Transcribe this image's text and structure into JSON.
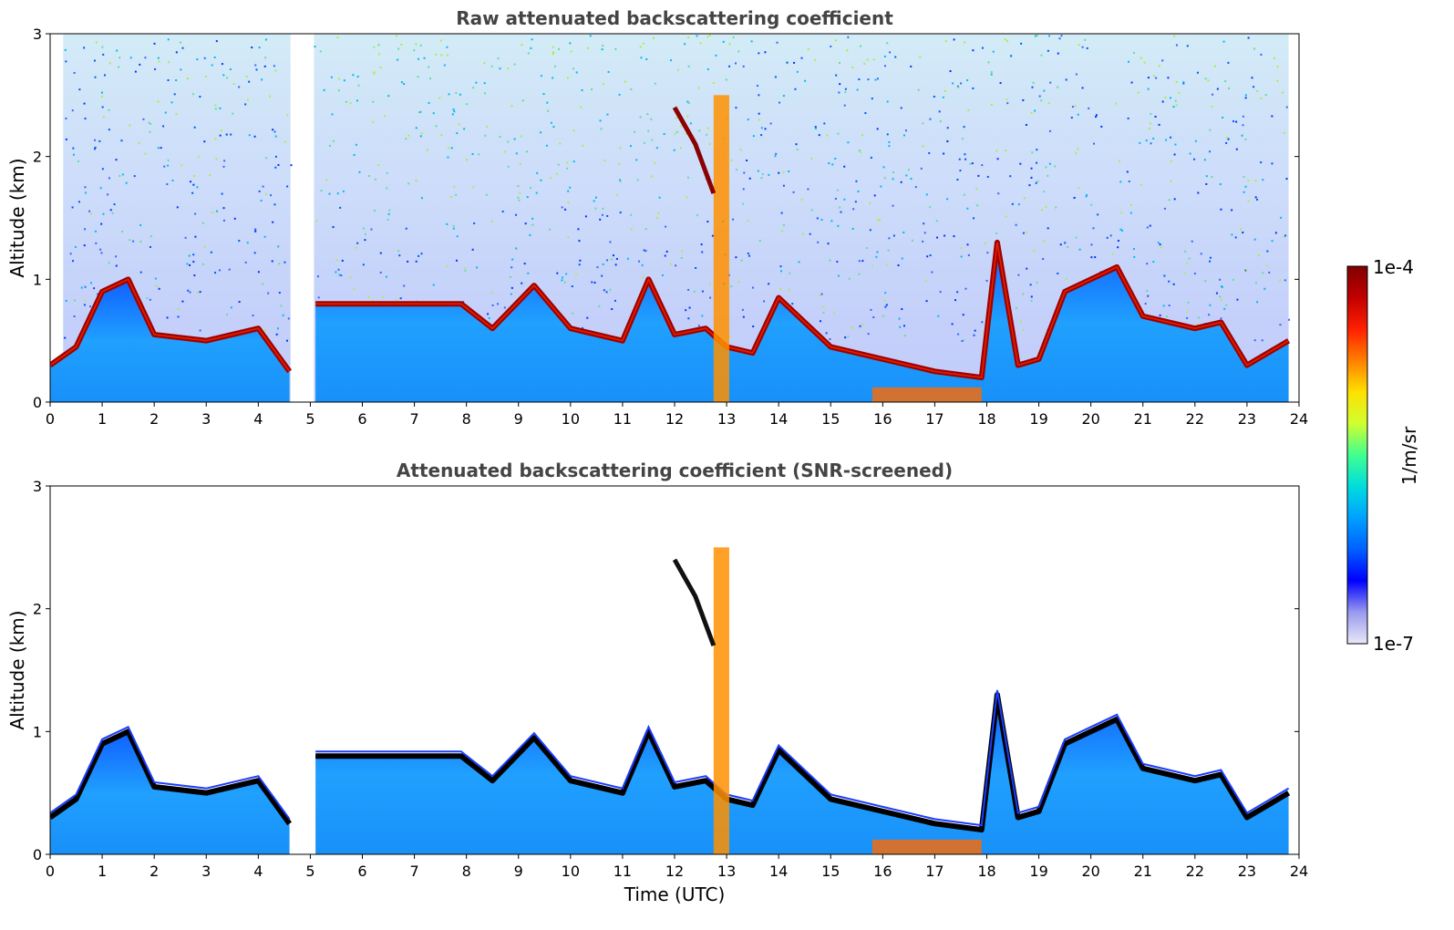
{
  "chart_data": [
    {
      "type": "heatmap",
      "title": "Raw attenuated backscattering coefficient",
      "xlabel": "",
      "ylabel": "Altitude (km)",
      "xlim": [
        0,
        24
      ],
      "ylim": [
        0,
        3
      ],
      "xticks": [
        "0",
        "1",
        "2",
        "3",
        "4",
        "5",
        "6",
        "7",
        "8",
        "9",
        "10",
        "11",
        "12",
        "13",
        "14",
        "15",
        "16",
        "17",
        "18",
        "19",
        "20",
        "21",
        "22",
        "23",
        "24"
      ],
      "yticks": [
        "0",
        "1",
        "2",
        "3"
      ],
      "screened": false,
      "data_gap": [
        4.62,
        5.07
      ],
      "data_end": 23.8,
      "boundary_layer_top_km": {
        "x": [
          0,
          0.5,
          1.0,
          1.5,
          2.0,
          3.0,
          4.0,
          4.6,
          5.1,
          6.0,
          7.0,
          7.9,
          8.5,
          9.3,
          10.0,
          11.0,
          11.5,
          12.0,
          12.6,
          13.0,
          13.5,
          14.0,
          15.0,
          16.0,
          17.0,
          17.9,
          18.2,
          18.6,
          19.0,
          19.5,
          20.0,
          20.5,
          21.0,
          22.0,
          22.5,
          23.0,
          23.8
        ],
        "y": [
          0.3,
          0.45,
          0.9,
          1.0,
          0.55,
          0.5,
          0.6,
          0.25,
          0.8,
          0.8,
          0.8,
          0.8,
          0.6,
          0.95,
          0.6,
          0.5,
          1.0,
          0.55,
          0.6,
          0.45,
          0.4,
          0.85,
          0.45,
          0.35,
          0.25,
          0.2,
          1.3,
          0.3,
          0.35,
          0.9,
          1.0,
          1.1,
          0.7,
          0.6,
          0.65,
          0.3,
          0.5
        ]
      }
    },
    {
      "type": "heatmap",
      "title": "Attenuated backscattering coefficient (SNR-screened)",
      "xlabel": "Time (UTC)",
      "ylabel": "Altitude (km)",
      "xlim": [
        0,
        24
      ],
      "ylim": [
        0,
        3
      ],
      "xticks": [
        "0",
        "1",
        "2",
        "3",
        "4",
        "5",
        "6",
        "7",
        "8",
        "9",
        "10",
        "11",
        "12",
        "13",
        "14",
        "15",
        "16",
        "17",
        "18",
        "19",
        "20",
        "21",
        "22",
        "23",
        "24"
      ],
      "yticks": [
        "0",
        "1",
        "2",
        "3"
      ],
      "screened": true,
      "data_gap": [
        4.62,
        5.07
      ],
      "data_end": 23.8,
      "boundary_layer_top_km": {
        "x": [
          0,
          0.5,
          1.0,
          1.5,
          2.0,
          3.0,
          4.0,
          4.6,
          5.1,
          6.0,
          7.0,
          7.9,
          8.5,
          9.3,
          10.0,
          11.0,
          11.5,
          12.0,
          12.6,
          13.0,
          13.5,
          14.0,
          15.0,
          16.0,
          17.0,
          17.9,
          18.2,
          18.6,
          19.0,
          19.5,
          20.0,
          20.5,
          21.0,
          22.0,
          22.5,
          23.0,
          23.8
        ],
        "y": [
          0.3,
          0.45,
          0.9,
          1.0,
          0.55,
          0.5,
          0.6,
          0.25,
          0.8,
          0.8,
          0.8,
          0.8,
          0.6,
          0.95,
          0.6,
          0.5,
          1.0,
          0.55,
          0.6,
          0.45,
          0.4,
          0.85,
          0.45,
          0.35,
          0.25,
          0.2,
          1.3,
          0.3,
          0.35,
          0.9,
          1.0,
          1.1,
          0.7,
          0.6,
          0.65,
          0.3,
          0.5
        ]
      }
    }
  ],
  "colorbar": {
    "label": "1/m/sr",
    "max_label": "1e-4",
    "min_label": "1e-7",
    "colormap": [
      "#e8e8f8",
      "#9a9aee",
      "#0000ff",
      "#0060ff",
      "#00a0ff",
      "#00dddd",
      "#40ff90",
      "#d0ff30",
      "#ffe000",
      "#ff8000",
      "#ff2000",
      "#c00000",
      "#800000"
    ]
  }
}
